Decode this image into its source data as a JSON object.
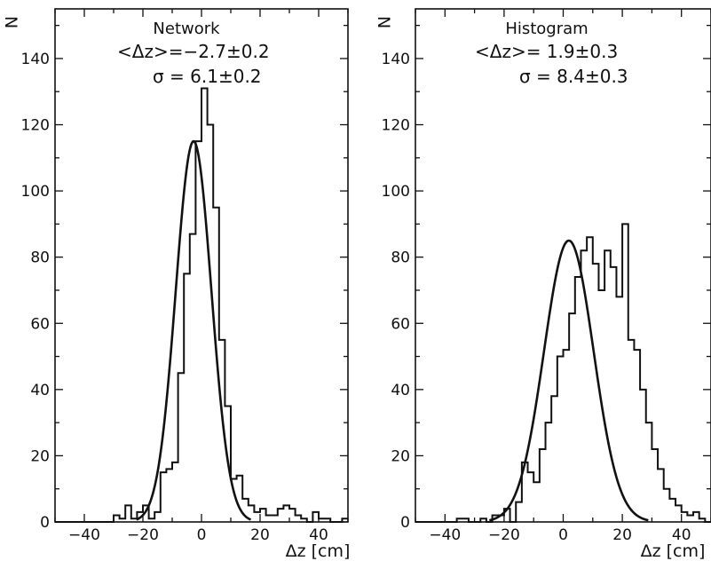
{
  "chart_data": [
    {
      "type": "histogram",
      "title": "Network",
      "stats": [
        "<Δz>=−2.7±0.2",
        "σ =  6.1±0.2"
      ],
      "xlabel": "Δz [cm]",
      "ylabel": "N",
      "xlim": [
        -50,
        50
      ],
      "ylim": [
        0,
        155
      ],
      "xticks": [
        -40,
        -20,
        0,
        20,
        40
      ],
      "xtick_labels": [
        "−40",
        "−20",
        "0",
        "20",
        "40"
      ],
      "yticks": [
        0,
        20,
        40,
        60,
        80,
        100,
        120,
        140
      ],
      "ytick_labels": [
        "0",
        "20",
        "40",
        "60",
        "80",
        "100",
        "120",
        "140"
      ],
      "bin_width": 2,
      "bin_edges_start": -50,
      "counts": [
        0,
        0,
        0,
        0,
        0,
        0,
        0,
        0,
        0,
        0,
        2,
        1,
        5,
        1,
        3,
        5,
        1,
        3,
        15,
        16,
        18,
        45,
        75,
        87,
        115,
        131,
        120,
        95,
        55,
        35,
        13,
        14,
        7,
        5,
        3,
        4,
        2,
        2,
        4,
        5,
        4,
        2,
        1,
        0,
        3,
        1,
        1,
        0,
        0,
        1
      ],
      "fit": {
        "mean": -2.7,
        "sigma": 6.1,
        "amplitude": 115
      }
    },
    {
      "type": "histogram",
      "title": "Histogram",
      "stats": [
        "<Δz>=  1.9±0.3",
        "σ =  8.4±0.3"
      ],
      "xlabel": "Δz [cm]",
      "ylabel": "N",
      "xlim": [
        -50,
        50
      ],
      "ylim": [
        0,
        155
      ],
      "xticks": [
        -40,
        -20,
        0,
        20,
        40
      ],
      "xtick_labels": [
        "−40",
        "−20",
        "0",
        "20",
        "40"
      ],
      "yticks": [
        0,
        20,
        40,
        60,
        80,
        100,
        120,
        140
      ],
      "ytick_labels": [
        "0",
        "20",
        "40",
        "60",
        "80",
        "100",
        "120",
        "140"
      ],
      "bin_width": 2,
      "bin_edges_start": -50,
      "counts": [
        0,
        0,
        0,
        0,
        0,
        0,
        0,
        1,
        1,
        0,
        0,
        1,
        0,
        2,
        2,
        4,
        0,
        6,
        18,
        15,
        12,
        22,
        30,
        38,
        50,
        52,
        63,
        74,
        82,
        86,
        78,
        70,
        82,
        77,
        68,
        90,
        55,
        52,
        40,
        30,
        22,
        16,
        10,
        7,
        5,
        3,
        2,
        3,
        1,
        0
      ],
      "fit": {
        "mean": 1.9,
        "sigma": 8.4,
        "amplitude": 85
      }
    }
  ]
}
